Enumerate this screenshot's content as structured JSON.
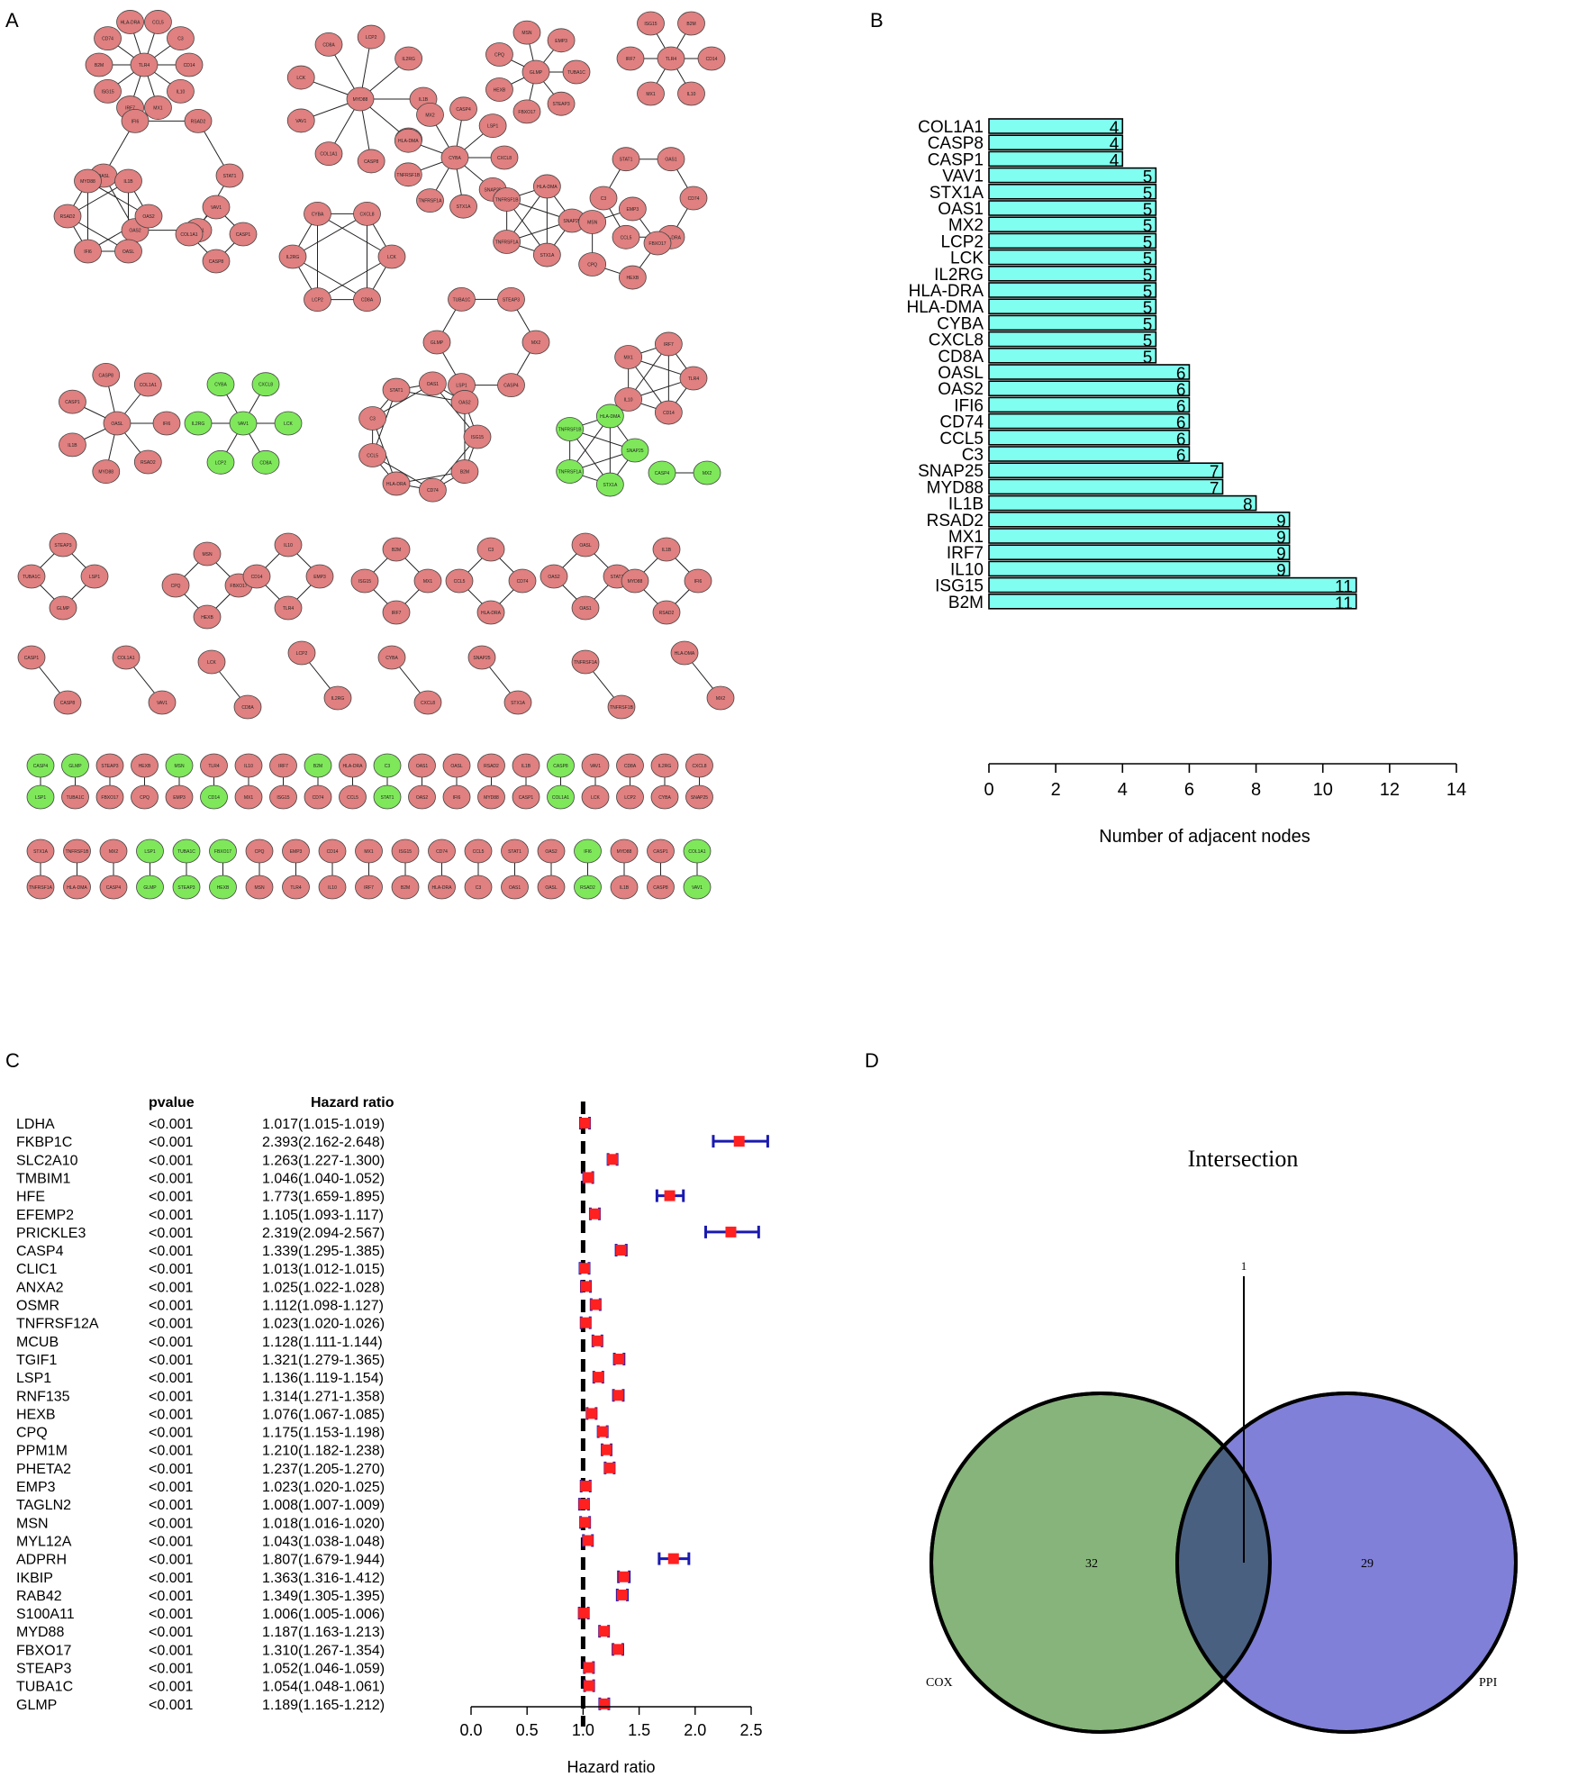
{
  "panels": {
    "a": "A",
    "b": "B",
    "c": "C",
    "d": "D"
  },
  "colors": {
    "node_up": "#e08080",
    "node_down": "#7ee85a",
    "bar": "#80fff0",
    "hr_point": "#ff2020",
    "hr_ci": "#1a1ab0",
    "cox": "#86b47a",
    "ppi": "#8080d8",
    "overlap": "#4a6080"
  },
  "network": {
    "title": "",
    "node_labels": [
      "TLR4",
      "CD14",
      "IL10",
      "MX1",
      "IRF7",
      "ISG15",
      "B2M",
      "CD74",
      "HLA-DRA",
      "CCL5",
      "C3",
      "STAT1",
      "OAS1",
      "OAS2",
      "OASL",
      "IFI6",
      "RSAD2",
      "MYD88",
      "IL1B",
      "CASP1",
      "CASP8",
      "COL1A1",
      "VAV1",
      "LCK",
      "CD8A",
      "LCP2",
      "IL2RG",
      "CYBA",
      "CXCL8",
      "SNAP25",
      "STX1A",
      "TNFRSF1A",
      "TNFRSF1B",
      "HLA-DMA",
      "MX2",
      "CASP4",
      "LSP1",
      "GLMP",
      "TUBA1C",
      "STEAP3",
      "FBXO17",
      "HEXB",
      "CPQ",
      "MSN",
      "EMP3"
    ]
  },
  "chart_data": [
    {
      "type": "bar",
      "orientation": "horizontal",
      "categories": [
        "COL1A1",
        "CASP8",
        "CASP1",
        "VAV1",
        "STX1A",
        "OAS1",
        "MX2",
        "LCP2",
        "LCK",
        "IL2RG",
        "HLA-DRA",
        "HLA-DMA",
        "CYBA",
        "CXCL8",
        "CD8A",
        "OASL",
        "OAS2",
        "IFI6",
        "CD74",
        "CCL5",
        "C3",
        "SNAP25",
        "MYD88",
        "IL1B",
        "RSAD2",
        "MX1",
        "IRF7",
        "IL10",
        "ISG15",
        "B2M"
      ],
      "values": [
        4,
        4,
        4,
        5,
        5,
        5,
        5,
        5,
        5,
        5,
        5,
        5,
        5,
        5,
        5,
        6,
        6,
        6,
        6,
        6,
        6,
        7,
        7,
        8,
        9,
        9,
        9,
        9,
        11,
        11
      ],
      "xlabel": "Number of adjacent nodes",
      "xlim": [
        0,
        14
      ],
      "xticks": [
        "0",
        "2",
        "4",
        "6",
        "8",
        "10",
        "12",
        "14"
      ]
    },
    {
      "type": "forest",
      "header_pvalue": "pvalue",
      "header_hr": "Hazard ratio",
      "xlabel": "Hazard ratio",
      "xlim": [
        0,
        2.5
      ],
      "xticks": [
        "0.0",
        "0.5",
        "1.0",
        "1.5",
        "2.0",
        "2.5"
      ],
      "reference_line": 1.0,
      "rows": [
        {
          "gene": "LDHA",
          "p": "<0.001",
          "hr_text": "1.017(1.015-1.019)",
          "hr": 1.017,
          "lo": 1.015,
          "hi": 1.019
        },
        {
          "gene": "FKBP1C",
          "p": "<0.001",
          "hr_text": "2.393(2.162-2.648)",
          "hr": 2.393,
          "lo": 2.162,
          "hi": 2.648
        },
        {
          "gene": "SLC2A10",
          "p": "<0.001",
          "hr_text": "1.263(1.227-1.300)",
          "hr": 1.263,
          "lo": 1.227,
          "hi": 1.3
        },
        {
          "gene": "TMBIM1",
          "p": "<0.001",
          "hr_text": "1.046(1.040-1.052)",
          "hr": 1.046,
          "lo": 1.04,
          "hi": 1.052
        },
        {
          "gene": "HFE",
          "p": "<0.001",
          "hr_text": "1.773(1.659-1.895)",
          "hr": 1.773,
          "lo": 1.659,
          "hi": 1.895
        },
        {
          "gene": "EFEMP2",
          "p": "<0.001",
          "hr_text": "1.105(1.093-1.117)",
          "hr": 1.105,
          "lo": 1.093,
          "hi": 1.117
        },
        {
          "gene": "PRICKLE3",
          "p": "<0.001",
          "hr_text": "2.319(2.094-2.567)",
          "hr": 2.319,
          "lo": 2.094,
          "hi": 2.567
        },
        {
          "gene": "CASP4",
          "p": "<0.001",
          "hr_text": "1.339(1.295-1.385)",
          "hr": 1.339,
          "lo": 1.295,
          "hi": 1.385
        },
        {
          "gene": "CLIC1",
          "p": "<0.001",
          "hr_text": "1.013(1.012-1.015)",
          "hr": 1.013,
          "lo": 1.012,
          "hi": 1.015
        },
        {
          "gene": "ANXA2",
          "p": "<0.001",
          "hr_text": "1.025(1.022-1.028)",
          "hr": 1.025,
          "lo": 1.022,
          "hi": 1.028
        },
        {
          "gene": "OSMR",
          "p": "<0.001",
          "hr_text": "1.112(1.098-1.127)",
          "hr": 1.112,
          "lo": 1.098,
          "hi": 1.127
        },
        {
          "gene": "TNFRSF12A",
          "p": "<0.001",
          "hr_text": "1.023(1.020-1.026)",
          "hr": 1.023,
          "lo": 1.02,
          "hi": 1.026
        },
        {
          "gene": "MCUB",
          "p": "<0.001",
          "hr_text": "1.128(1.111-1.144)",
          "hr": 1.128,
          "lo": 1.111,
          "hi": 1.144
        },
        {
          "gene": "TGIF1",
          "p": "<0.001",
          "hr_text": "1.321(1.279-1.365)",
          "hr": 1.321,
          "lo": 1.279,
          "hi": 1.365
        },
        {
          "gene": "LSP1",
          "p": "<0.001",
          "hr_text": "1.136(1.119-1.154)",
          "hr": 1.136,
          "lo": 1.119,
          "hi": 1.154
        },
        {
          "gene": "RNF135",
          "p": "<0.001",
          "hr_text": "1.314(1.271-1.358)",
          "hr": 1.314,
          "lo": 1.271,
          "hi": 1.358
        },
        {
          "gene": "HEXB",
          "p": "<0.001",
          "hr_text": "1.076(1.067-1.085)",
          "hr": 1.076,
          "lo": 1.067,
          "hi": 1.085
        },
        {
          "gene": "CPQ",
          "p": "<0.001",
          "hr_text": "1.175(1.153-1.198)",
          "hr": 1.175,
          "lo": 1.153,
          "hi": 1.198
        },
        {
          "gene": "PPM1M",
          "p": "<0.001",
          "hr_text": "1.210(1.182-1.238)",
          "hr": 1.21,
          "lo": 1.182,
          "hi": 1.238
        },
        {
          "gene": "PHETA2",
          "p": "<0.001",
          "hr_text": "1.237(1.205-1.270)",
          "hr": 1.237,
          "lo": 1.205,
          "hi": 1.27
        },
        {
          "gene": "EMP3",
          "p": "<0.001",
          "hr_text": "1.023(1.020-1.025)",
          "hr": 1.023,
          "lo": 1.02,
          "hi": 1.025
        },
        {
          "gene": "TAGLN2",
          "p": "<0.001",
          "hr_text": "1.008(1.007-1.009)",
          "hr": 1.008,
          "lo": 1.007,
          "hi": 1.009
        },
        {
          "gene": "MSN",
          "p": "<0.001",
          "hr_text": "1.018(1.016-1.020)",
          "hr": 1.018,
          "lo": 1.016,
          "hi": 1.02
        },
        {
          "gene": "MYL12A",
          "p": "<0.001",
          "hr_text": "1.043(1.038-1.048)",
          "hr": 1.043,
          "lo": 1.038,
          "hi": 1.048
        },
        {
          "gene": "ADPRH",
          "p": "<0.001",
          "hr_text": "1.807(1.679-1.944)",
          "hr": 1.807,
          "lo": 1.679,
          "hi": 1.944
        },
        {
          "gene": "IKBIP",
          "p": "<0.001",
          "hr_text": "1.363(1.316-1.412)",
          "hr": 1.363,
          "lo": 1.316,
          "hi": 1.412
        },
        {
          "gene": "RAB42",
          "p": "<0.001",
          "hr_text": "1.349(1.305-1.395)",
          "hr": 1.349,
          "lo": 1.305,
          "hi": 1.395
        },
        {
          "gene": "S100A11",
          "p": "<0.001",
          "hr_text": "1.006(1.005-1.006)",
          "hr": 1.006,
          "lo": 1.005,
          "hi": 1.006
        },
        {
          "gene": "MYD88",
          "p": "<0.001",
          "hr_text": "1.187(1.163-1.213)",
          "hr": 1.187,
          "lo": 1.163,
          "hi": 1.213
        },
        {
          "gene": "FBXO17",
          "p": "<0.001",
          "hr_text": "1.310(1.267-1.354)",
          "hr": 1.31,
          "lo": 1.267,
          "hi": 1.354
        },
        {
          "gene": "STEAP3",
          "p": "<0.001",
          "hr_text": "1.052(1.046-1.059)",
          "hr": 1.052,
          "lo": 1.046,
          "hi": 1.059
        },
        {
          "gene": "TUBA1C",
          "p": "<0.001",
          "hr_text": "1.054(1.048-1.061)",
          "hr": 1.054,
          "lo": 1.048,
          "hi": 1.061
        },
        {
          "gene": "GLMP",
          "p": "<0.001",
          "hr_text": "1.189(1.165-1.212)",
          "hr": 1.189,
          "lo": 1.165,
          "hi": 1.212
        }
      ]
    },
    {
      "type": "venn",
      "title": "Intersection",
      "sets": [
        {
          "name": "COX",
          "only": "32"
        },
        {
          "name": "PPI",
          "only": "29"
        }
      ],
      "intersection": "1"
    }
  ]
}
